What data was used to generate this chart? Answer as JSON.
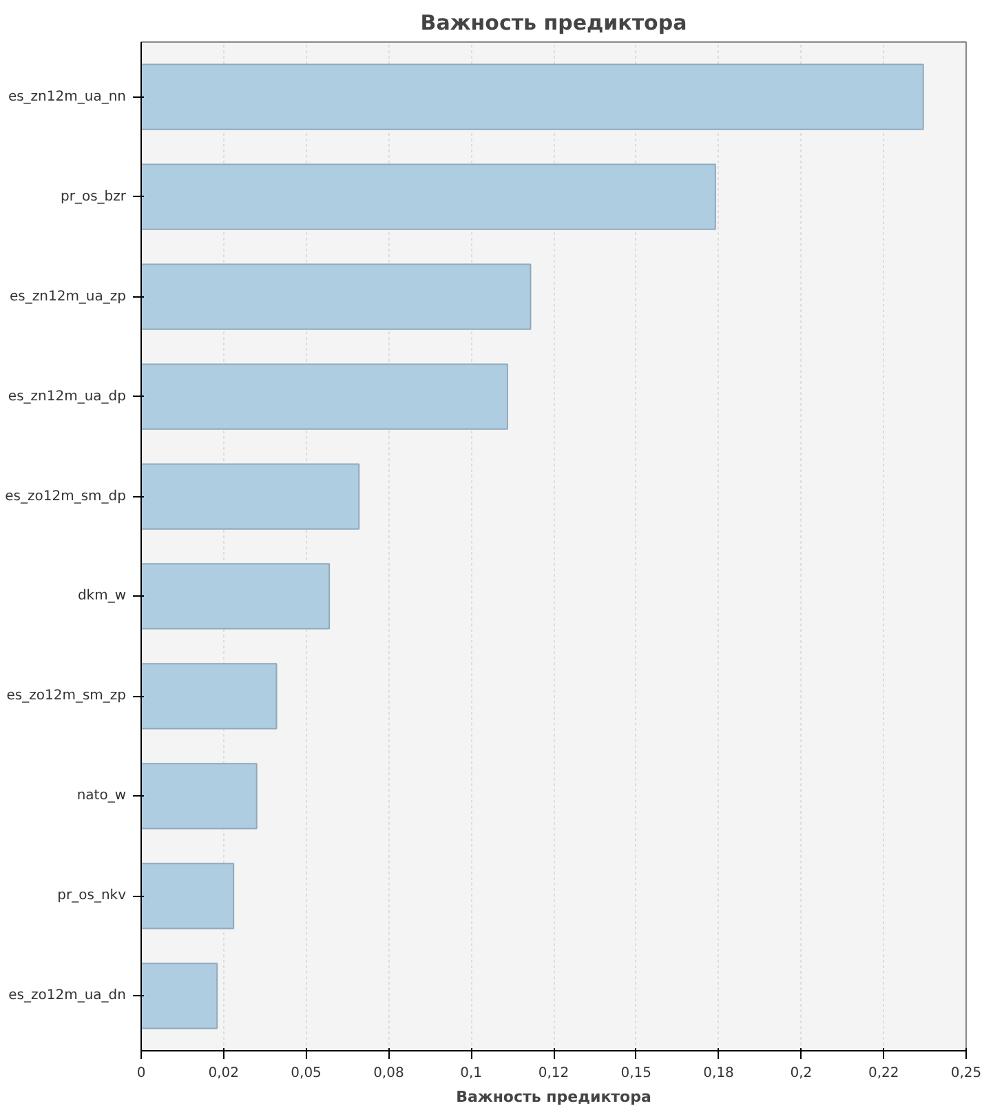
{
  "chart_data": {
    "type": "bar",
    "orientation": "horizontal",
    "title": "Важность предиктора",
    "xlabel": "Важность предиктора",
    "categories": [
      "es_zn12m_ua_nn",
      "pr_os_bzr",
      "es_zn12m_ua_zp",
      "es_zn12m_ua_dp",
      "es_zo12m_sm_dp",
      "dkm_w",
      "es_zo12m_sm_zp",
      "nato_w",
      "pr_os_nkv",
      "es_zo12m_ua_dn"
    ],
    "values": [
      0.237,
      0.174,
      0.118,
      0.111,
      0.066,
      0.057,
      0.041,
      0.035,
      0.028,
      0.023
    ],
    "color": "#afcde1",
    "xlim": [
      0,
      0.25
    ],
    "xticks": [
      0,
      {
        "value": 0.025,
        "label": "0,02"
      },
      {
        "value": 0.05,
        "label": "0,05"
      },
      {
        "value": 0.075,
        "label": "0,08"
      },
      {
        "value": 0.1,
        "label": "0,1"
      },
      {
        "value": 0.125,
        "label": "0,12"
      },
      {
        "value": 0.15,
        "label": "0,15"
      },
      {
        "value": 0.175,
        "label": "0,18"
      },
      {
        "value": 0.2,
        "label": "0,2"
      },
      {
        "value": 0.225,
        "label": "0,22"
      },
      {
        "value": 0.25,
        "label": "0,25"
      }
    ],
    "grid": "x"
  }
}
